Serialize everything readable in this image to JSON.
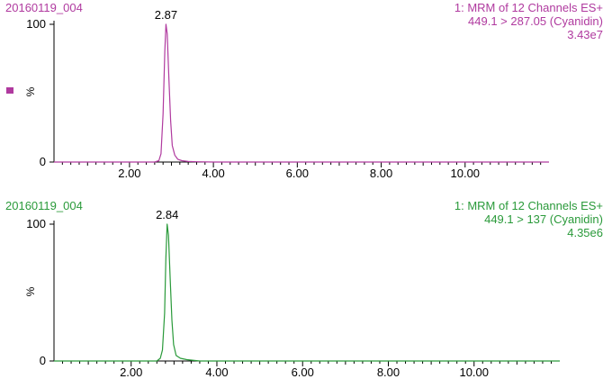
{
  "chart_data": [
    {
      "type": "line",
      "header_left": "20160119_004",
      "header_right_lines": [
        "1: MRM of 12 Channels ES+",
        "449.1 > 287.05 (Cyanidin)",
        "3.43e7"
      ],
      "ylabel": "%",
      "y_ticks": [
        "100",
        "0"
      ],
      "ylim": [
        0,
        100
      ],
      "xlim": [
        0.2,
        12.0
      ],
      "x_ticks": [
        2.0,
        4.0,
        6.0,
        8.0,
        10.0
      ],
      "x_tick_labels": [
        "2.00",
        "4.00",
        "6.00",
        "8.00",
        "10.00"
      ],
      "series": [
        {
          "x": [
            0.2,
            2.6,
            2.7,
            2.75,
            2.8,
            2.84,
            2.87,
            2.9,
            2.94,
            2.98,
            3.02,
            3.08,
            3.15,
            3.25,
            3.4,
            3.6,
            4.0,
            12.0
          ],
          "y": [
            0,
            0,
            1,
            6,
            35,
            80,
            100,
            93,
            60,
            30,
            12,
            5,
            2,
            1,
            0.4,
            0.2,
            0,
            0
          ]
        }
      ],
      "peak_label": "2.87",
      "peak_x": 2.87,
      "color": "#b03a9f"
    },
    {
      "type": "line",
      "header_left": "20160119_004",
      "header_right_lines": [
        "1: MRM of 12 Channels ES+",
        "449.1 > 137 (Cyanidin)",
        "4.35e6"
      ],
      "ylabel": "%",
      "y_ticks": [
        "100",
        "0"
      ],
      "ylim": [
        0,
        100
      ],
      "xlim": [
        0.2,
        12.0
      ],
      "x_ticks": [
        2.0,
        4.0,
        6.0,
        8.0,
        10.0
      ],
      "x_tick_labels": [
        "2.00",
        "4.00",
        "6.00",
        "8.00",
        "10.00"
      ],
      "series": [
        {
          "x": [
            0.2,
            2.6,
            2.68,
            2.73,
            2.78,
            2.81,
            2.84,
            2.87,
            2.91,
            2.95,
            2.99,
            3.05,
            3.15,
            3.3,
            3.6,
            12.0
          ],
          "y": [
            0,
            0,
            2,
            8,
            35,
            75,
            100,
            92,
            60,
            30,
            12,
            4,
            2,
            1,
            0,
            0
          ]
        }
      ],
      "peak_label": "2.84",
      "peak_x": 2.84,
      "color": "#2a9a3a"
    }
  ]
}
